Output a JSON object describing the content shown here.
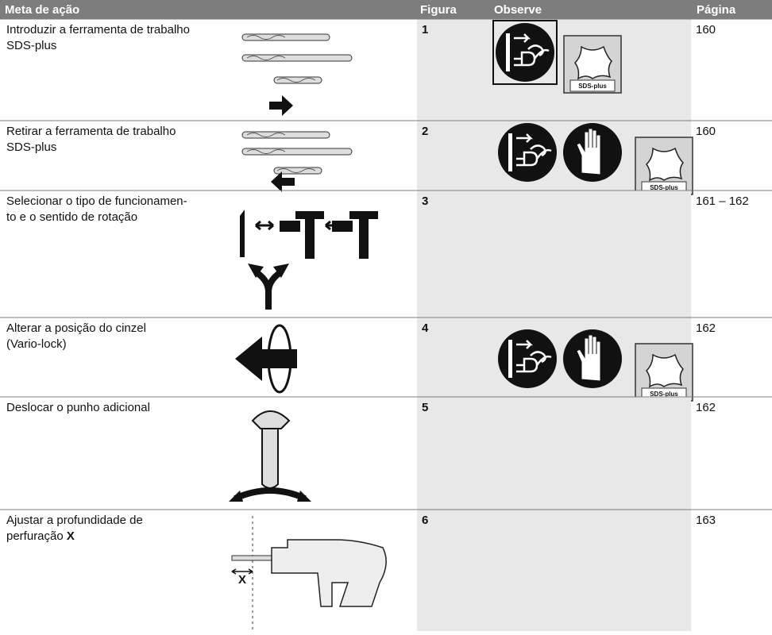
{
  "header": {
    "goal": "Meta de ação",
    "figure": "Figura",
    "observe": "Observe",
    "page": "Página"
  },
  "sds_label": "SDS-plus",
  "depth_label": "X",
  "rows": [
    {
      "goal": [
        "Introduzir a ferramenta de trabalho",
        "SDS-plus"
      ],
      "figure": "1",
      "page": "160"
    },
    {
      "goal": [
        "Retirar a ferramenta de trabalho",
        "SDS-plus"
      ],
      "figure": "2",
      "page": "160"
    },
    {
      "goal": [
        "Selecionar o tipo de funcionamen-",
        "to e o sentido de rotação"
      ],
      "figure": "3",
      "page": "161 – 162"
    },
    {
      "goal": [
        "Alterar a posição do cinzel",
        "(Vario-lock)"
      ],
      "figure": "4",
      "page": "162"
    },
    {
      "goal": [
        "Deslocar o punho adicional"
      ],
      "figure": "5",
      "page": "162"
    },
    {
      "goal": [
        "Ajustar a profundidade de",
        "perfuração"
      ],
      "goal_bold": "X",
      "figure": "6",
      "page": "163"
    }
  ]
}
